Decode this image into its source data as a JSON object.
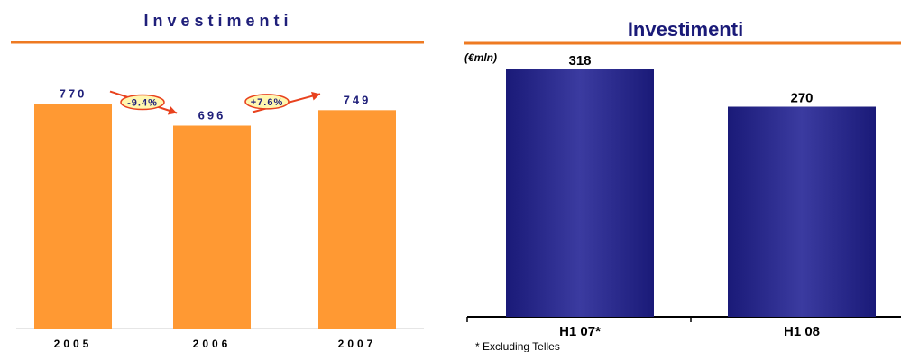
{
  "colors": {
    "left_bar": "#FF9933",
    "left_text": "#1F1F7A",
    "rule": "#EE7A22",
    "arrow": "#E8421E",
    "badge_fill": "#FFF7B0",
    "right_bar_top": "#1A1A78",
    "right_bar_mid": "#3B3BA0",
    "axis": "#000000"
  },
  "chart_data": [
    {
      "type": "bar",
      "title": "Investimenti",
      "categories": [
        "2005",
        "2006",
        "2007"
      ],
      "values": [
        770,
        696,
        749
      ],
      "value_labels": [
        "770",
        "696",
        "749"
      ],
      "changes": [
        "-9.4%",
        "+7.6%"
      ],
      "ylim": [
        0,
        1000
      ],
      "grid": false
    },
    {
      "type": "bar",
      "title": "Investimenti",
      "unit_label": "(€mln)",
      "categories": [
        "H1 07*",
        "H1 08"
      ],
      "values": [
        318,
        270
      ],
      "value_labels": [
        "318",
        "270"
      ],
      "footnote": "* Excluding Telles",
      "ylim": [
        0,
        318
      ],
      "grid": false
    }
  ]
}
